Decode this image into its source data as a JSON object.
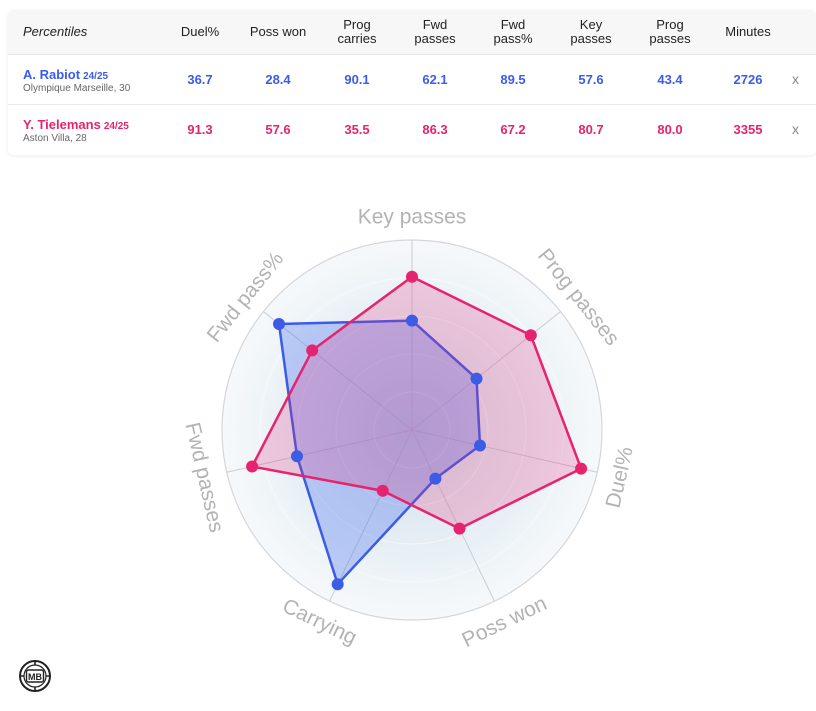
{
  "table": {
    "header_label": "Percentiles",
    "columns": [
      "Duel%",
      "Poss won",
      "Prog\ncarries",
      "Fwd\npasses",
      "Fwd\npass%",
      "Key\npasses",
      "Prog\npasses",
      "Minutes"
    ],
    "players": [
      {
        "name": "A. Rabiot",
        "season": "24/25",
        "sub": "Olympique Marseille, 30",
        "values": [
          "36.7",
          "28.4",
          "90.1",
          "62.1",
          "89.5",
          "57.6",
          "43.4",
          "2726"
        ],
        "remove_label": "x"
      },
      {
        "name": "Y. Tielemans",
        "season": "24/25",
        "sub": "Aston Villa, 28",
        "values": [
          "91.3",
          "57.6",
          "35.5",
          "86.3",
          "67.2",
          "80.7",
          "80.0",
          "3355"
        ],
        "remove_label": "x"
      }
    ]
  },
  "chart_data": {
    "type": "radar",
    "axes": [
      "Key passes",
      "Prog passes",
      "Duel%",
      "Poss won",
      "Carrying",
      "Fwd passes",
      "Fwd pass%"
    ],
    "range": [
      0,
      100
    ],
    "series": [
      {
        "name": "A. Rabiot",
        "color": "#3c5ce6",
        "values": [
          57.6,
          43.4,
          36.7,
          28.4,
          90.1,
          62.1,
          89.5
        ]
      },
      {
        "name": "Y. Tielemans",
        "color": "#e6236f",
        "values": [
          80.7,
          80.0,
          91.3,
          57.6,
          35.5,
          86.3,
          67.2
        ]
      }
    ]
  },
  "logo": {
    "text": "MB"
  }
}
